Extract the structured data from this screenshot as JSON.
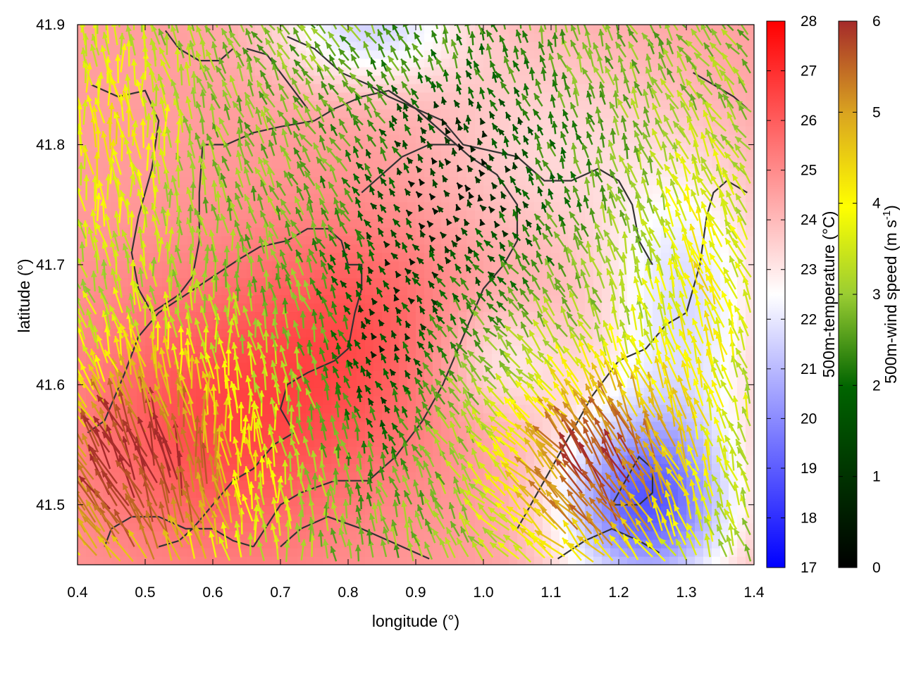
{
  "chart_data": {
    "type": "heatmap",
    "xlabel": "longitude (°)",
    "ylabel": "latitude (°)",
    "xlim": [
      0.4,
      1.4
    ],
    "ylim": [
      41.45,
      41.9
    ],
    "xticks": [
      0.4,
      0.5,
      0.6,
      0.7,
      0.8,
      0.9,
      1.0,
      1.1,
      1.2,
      1.3,
      1.4
    ],
    "xtick_labels": [
      "0.4",
      "0.5",
      "0.6",
      "0.7",
      "0.8",
      "0.9",
      "1.0",
      "1.1",
      "1.2",
      "1.3",
      "1.4"
    ],
    "yticks": [
      41.5,
      41.6,
      41.7,
      41.8,
      41.9
    ],
    "ytick_labels": [
      "41.5",
      "41.6",
      "41.7",
      "41.8",
      "41.9"
    ],
    "temperature": {
      "label": "500m-temperature (°C)",
      "range": [
        17,
        28
      ],
      "ticks": [
        17,
        18,
        19,
        20,
        21,
        22,
        23,
        24,
        25,
        26,
        27,
        28
      ],
      "tick_labels": [
        "17",
        "18",
        "19",
        "20",
        "21",
        "22",
        "23",
        "24",
        "25",
        "26",
        "27",
        "28"
      ],
      "colors": [
        "#0000ff",
        "#ffffff",
        "#ff0000"
      ]
    },
    "wind": {
      "label": "500m-wind speed (m s",
      "label_sup": "-1",
      "label_end": ")",
      "range": [
        0,
        6
      ],
      "ticks": [
        0,
        1,
        2,
        3,
        4,
        5,
        6
      ],
      "tick_labels": [
        "0",
        "1",
        "2",
        "3",
        "4",
        "5",
        "6"
      ],
      "colors": [
        "#000000",
        "#006400",
        "#9acd32",
        "#ffff00",
        "#daa520",
        "#a52a2a"
      ]
    },
    "contour_color": "#333333",
    "contours": [
      [
        [
          0.42,
          41.85
        ],
        [
          0.46,
          41.84
        ],
        [
          0.5,
          41.845
        ],
        [
          0.52,
          41.82
        ],
        [
          0.51,
          41.78
        ],
        [
          0.49,
          41.74
        ],
        [
          0.48,
          41.71
        ],
        [
          0.49,
          41.68
        ],
        [
          0.51,
          41.66
        ],
        [
          0.55,
          41.675
        ],
        [
          0.57,
          41.69
        ],
        [
          0.58,
          41.72
        ],
        [
          0.58,
          41.76
        ],
        [
          0.585,
          41.8
        ],
        [
          0.62,
          41.8
        ],
        [
          0.66,
          41.81
        ],
        [
          0.7,
          41.815
        ],
        [
          0.75,
          41.82
        ],
        [
          0.78,
          41.83
        ],
        [
          0.82,
          41.84
        ],
        [
          0.86,
          41.845
        ],
        [
          0.9,
          41.83
        ],
        [
          0.94,
          41.81
        ],
        [
          0.96,
          41.8
        ],
        [
          0.92,
          41.8
        ],
        [
          0.88,
          41.79
        ],
        [
          0.86,
          41.78
        ],
        [
          0.84,
          41.77
        ],
        [
          0.82,
          41.76
        ]
      ],
      [
        [
          0.415,
          41.56
        ],
        [
          0.44,
          41.57
        ],
        [
          0.47,
          41.61
        ],
        [
          0.49,
          41.64
        ],
        [
          0.52,
          41.66
        ],
        [
          0.56,
          41.675
        ],
        [
          0.6,
          41.69
        ],
        [
          0.64,
          41.705
        ],
        [
          0.67,
          41.715
        ],
        [
          0.71,
          41.72
        ],
        [
          0.74,
          41.73
        ],
        [
          0.77,
          41.73
        ],
        [
          0.79,
          41.72
        ],
        [
          0.8,
          41.7
        ],
        [
          0.82,
          41.7
        ],
        [
          0.82,
          41.68
        ],
        [
          0.81,
          41.66
        ],
        [
          0.8,
          41.63
        ],
        [
          0.78,
          41.62
        ],
        [
          0.74,
          41.61
        ],
        [
          0.71,
          41.6
        ],
        [
          0.7,
          41.58
        ],
        [
          0.72,
          41.56
        ],
        [
          0.69,
          41.55
        ],
        [
          0.66,
          41.53
        ],
        [
          0.63,
          41.52
        ],
        [
          0.6,
          41.5
        ],
        [
          0.57,
          41.48
        ],
        [
          0.55,
          41.47
        ],
        [
          0.52,
          41.465
        ]
      ],
      [
        [
          0.66,
          41.465
        ],
        [
          0.7,
          41.5
        ],
        [
          0.73,
          41.51
        ],
        [
          0.78,
          41.52
        ],
        [
          0.83,
          41.52
        ],
        [
          0.87,
          41.54
        ],
        [
          0.91,
          41.57
        ],
        [
          0.94,
          41.6
        ],
        [
          0.97,
          41.64
        ],
        [
          1.0,
          41.68
        ],
        [
          1.03,
          41.7
        ],
        [
          1.05,
          41.72
        ],
        [
          1.05,
          41.75
        ],
        [
          1.02,
          41.775
        ],
        [
          0.98,
          41.79
        ],
        [
          0.94,
          41.81
        ],
        [
          0.9,
          41.83
        ],
        [
          0.86,
          41.845
        ]
      ],
      [
        [
          0.44,
          41.465
        ],
        [
          0.45,
          41.48
        ],
        [
          0.48,
          41.49
        ],
        [
          0.52,
          41.49
        ],
        [
          0.56,
          41.48
        ],
        [
          0.6,
          41.48
        ],
        [
          0.63,
          41.47
        ],
        [
          0.66,
          41.465
        ]
      ],
      [
        [
          0.7,
          41.465
        ],
        [
          0.73,
          41.48
        ],
        [
          0.77,
          41.49
        ],
        [
          0.82,
          41.48
        ],
        [
          0.86,
          41.47
        ],
        [
          0.9,
          41.46
        ],
        [
          0.92,
          41.455
        ]
      ],
      [
        [
          1.11,
          41.455
        ],
        [
          1.15,
          41.47
        ],
        [
          1.19,
          41.48
        ],
        [
          1.23,
          41.47
        ],
        [
          1.26,
          41.46
        ]
      ],
      [
        [
          1.19,
          41.5
        ],
        [
          1.23,
          41.5
        ],
        [
          1.25,
          41.51
        ],
        [
          1.25,
          41.53
        ],
        [
          1.23,
          41.54
        ],
        [
          1.21,
          41.52
        ],
        [
          1.2,
          41.51
        ],
        [
          1.19,
          41.5
        ]
      ],
      [
        [
          1.05,
          41.48
        ],
        [
          1.09,
          41.52
        ],
        [
          1.13,
          41.56
        ],
        [
          1.16,
          41.59
        ],
        [
          1.2,
          41.62
        ],
        [
          1.24,
          41.63
        ],
        [
          1.27,
          41.65
        ],
        [
          1.3,
          41.66
        ],
        [
          1.32,
          41.7
        ],
        [
          1.33,
          41.74
        ],
        [
          1.34,
          41.76
        ],
        [
          1.36,
          41.77
        ],
        [
          1.39,
          41.76
        ]
      ],
      [
        [
          0.71,
          41.89
        ],
        [
          0.75,
          41.88
        ],
        [
          0.79,
          41.86
        ],
        [
          0.83,
          41.85
        ],
        [
          0.86,
          41.84
        ],
        [
          0.9,
          41.83
        ],
        [
          0.94,
          41.82
        ],
        [
          0.97,
          41.8
        ],
        [
          1.01,
          41.795
        ],
        [
          1.05,
          41.79
        ],
        [
          1.09,
          41.77
        ],
        [
          1.13,
          41.77
        ],
        [
          1.17,
          41.78
        ],
        [
          1.2,
          41.77
        ],
        [
          1.22,
          41.75
        ],
        [
          1.23,
          41.72
        ],
        [
          1.25,
          41.7
        ]
      ],
      [
        [
          0.65,
          41.88
        ],
        [
          0.68,
          41.875
        ],
        [
          0.7,
          41.86
        ],
        [
          0.72,
          41.845
        ],
        [
          0.74,
          41.83
        ]
      ],
      [
        [
          0.53,
          41.895
        ],
        [
          0.55,
          41.88
        ],
        [
          0.58,
          41.87
        ],
        [
          0.61,
          41.87
        ],
        [
          0.63,
          41.88
        ]
      ],
      [
        [
          1.31,
          41.86
        ],
        [
          1.34,
          41.85
        ],
        [
          1.37,
          41.84
        ],
        [
          1.39,
          41.83
        ]
      ]
    ]
  }
}
